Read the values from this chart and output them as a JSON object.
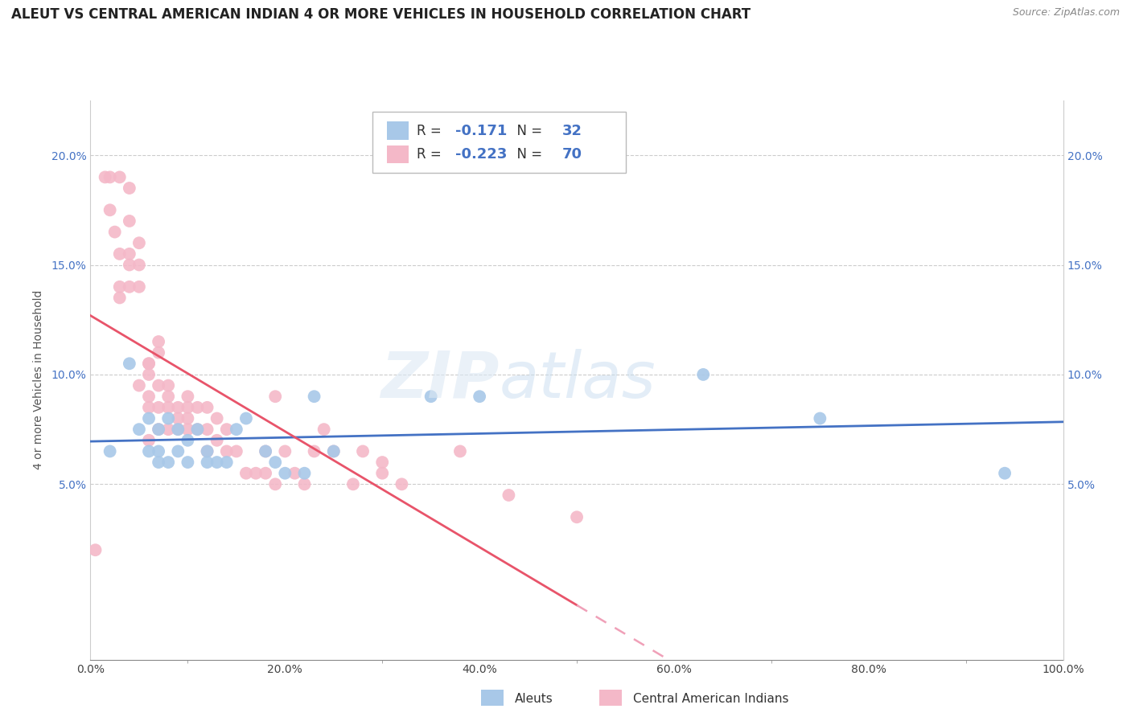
{
  "title": "ALEUT VS CENTRAL AMERICAN INDIAN 4 OR MORE VEHICLES IN HOUSEHOLD CORRELATION CHART",
  "source": "Source: ZipAtlas.com",
  "ylabel": "4 or more Vehicles in Household",
  "xlim": [
    0.0,
    1.0
  ],
  "ylim": [
    -0.03,
    0.225
  ],
  "xtick_vals": [
    0.0,
    0.2,
    0.4,
    0.6,
    0.8,
    1.0
  ],
  "xtick_labels": [
    "0.0%",
    "20.0%",
    "40.0%",
    "60.0%",
    "80.0%",
    "100.0%"
  ],
  "ytick_vals": [
    0.05,
    0.1,
    0.15,
    0.2
  ],
  "ytick_labels": [
    "5.0%",
    "10.0%",
    "15.0%",
    "20.0%"
  ],
  "aleut_R": "-0.171",
  "aleut_N": "32",
  "cai_R": "-0.223",
  "cai_N": "70",
  "aleut_color": "#a8c8e8",
  "cai_color": "#f4b8c8",
  "aleut_line_color": "#4472c4",
  "cai_line_color": "#e8546a",
  "cai_dash_color": "#f0a0b8",
  "aleut_x": [
    0.02,
    0.04,
    0.05,
    0.06,
    0.06,
    0.07,
    0.07,
    0.07,
    0.08,
    0.08,
    0.09,
    0.09,
    0.1,
    0.1,
    0.11,
    0.12,
    0.12,
    0.13,
    0.14,
    0.15,
    0.16,
    0.18,
    0.19,
    0.2,
    0.22,
    0.23,
    0.25,
    0.35,
    0.4,
    0.63,
    0.75,
    0.94
  ],
  "aleut_y": [
    0.065,
    0.105,
    0.075,
    0.08,
    0.065,
    0.065,
    0.06,
    0.075,
    0.06,
    0.08,
    0.075,
    0.065,
    0.06,
    0.07,
    0.075,
    0.06,
    0.065,
    0.06,
    0.06,
    0.075,
    0.08,
    0.065,
    0.06,
    0.055,
    0.055,
    0.09,
    0.065,
    0.09,
    0.09,
    0.1,
    0.08,
    0.055
  ],
  "cai_x": [
    0.005,
    0.015,
    0.02,
    0.02,
    0.025,
    0.03,
    0.03,
    0.03,
    0.03,
    0.04,
    0.04,
    0.04,
    0.04,
    0.04,
    0.05,
    0.05,
    0.05,
    0.05,
    0.06,
    0.06,
    0.06,
    0.06,
    0.06,
    0.06,
    0.07,
    0.07,
    0.07,
    0.07,
    0.07,
    0.08,
    0.08,
    0.08,
    0.08,
    0.09,
    0.09,
    0.09,
    0.1,
    0.1,
    0.1,
    0.1,
    0.11,
    0.11,
    0.12,
    0.12,
    0.12,
    0.13,
    0.13,
    0.14,
    0.14,
    0.15,
    0.16,
    0.17,
    0.18,
    0.18,
    0.19,
    0.19,
    0.2,
    0.21,
    0.22,
    0.23,
    0.24,
    0.25,
    0.27,
    0.28,
    0.3,
    0.3,
    0.32,
    0.38,
    0.43,
    0.5
  ],
  "cai_y": [
    0.02,
    0.19,
    0.175,
    0.19,
    0.165,
    0.155,
    0.14,
    0.135,
    0.19,
    0.17,
    0.155,
    0.15,
    0.14,
    0.185,
    0.16,
    0.15,
    0.14,
    0.095,
    0.105,
    0.105,
    0.1,
    0.09,
    0.085,
    0.07,
    0.115,
    0.11,
    0.095,
    0.085,
    0.075,
    0.095,
    0.09,
    0.085,
    0.075,
    0.085,
    0.08,
    0.075,
    0.09,
    0.085,
    0.08,
    0.075,
    0.085,
    0.075,
    0.085,
    0.075,
    0.065,
    0.08,
    0.07,
    0.075,
    0.065,
    0.065,
    0.055,
    0.055,
    0.065,
    0.055,
    0.09,
    0.05,
    0.065,
    0.055,
    0.05,
    0.065,
    0.075,
    0.065,
    0.05,
    0.065,
    0.06,
    0.055,
    0.05,
    0.065,
    0.045,
    0.035
  ]
}
